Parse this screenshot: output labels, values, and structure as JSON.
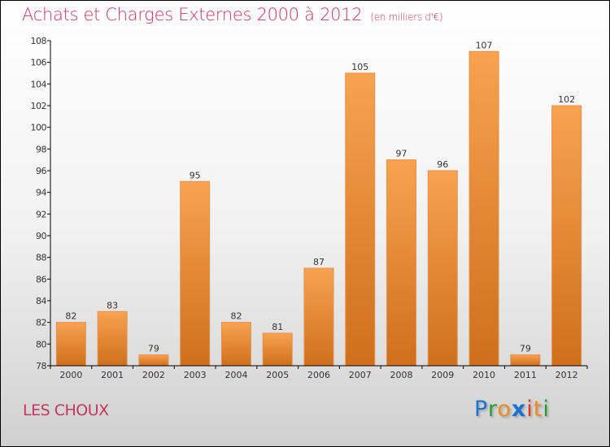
{
  "title": "Achats et Charges Externes 2000 à 2012",
  "subtitle": "(en milliers d'€)",
  "place": "LES CHOUX",
  "logo": "Proxiti",
  "colors": {
    "bar_top": "#f7a350",
    "bar_bottom": "#cf6f1c",
    "title": "#c8355e"
  },
  "chart_data": {
    "type": "bar",
    "categories": [
      "2000",
      "2001",
      "2002",
      "2003",
      "2004",
      "2005",
      "2006",
      "2007",
      "2008",
      "2009",
      "2010",
      "2011",
      "2012"
    ],
    "values": [
      82,
      83,
      79,
      95,
      82,
      81,
      87,
      105,
      97,
      96,
      107,
      79,
      102
    ],
    "ylim": [
      78,
      108
    ],
    "yticks": [
      78,
      80,
      82,
      84,
      86,
      88,
      90,
      92,
      94,
      96,
      98,
      100,
      102,
      104,
      106,
      108
    ],
    "xlabel": "",
    "ylabel": "",
    "grid": false
  }
}
